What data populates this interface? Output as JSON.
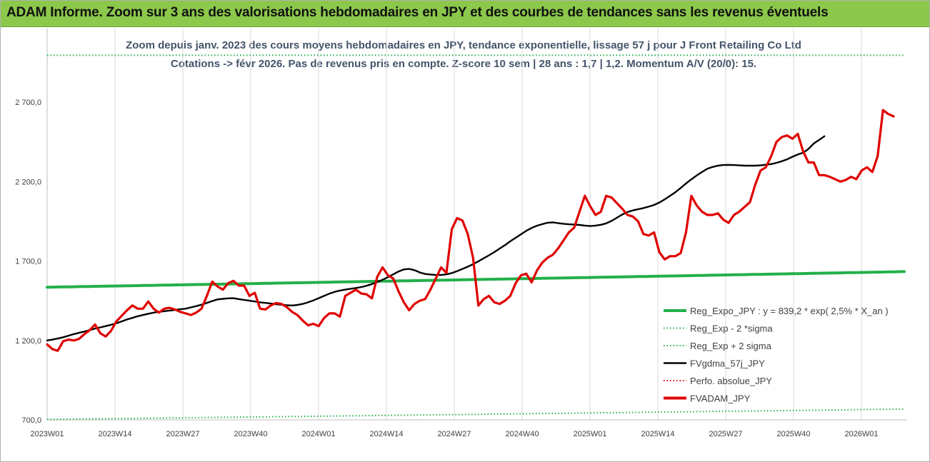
{
  "header": {
    "title": "ADAM Informe. Zoom sur 3 ans des valorisations hebdomadaires en JPY et des courbes de tendances sans les revenus éventuels"
  },
  "chart_data": {
    "type": "line",
    "subtitle_line1": "Zoom depuis janv. 2023 des cours moyens hebdomadaires en JPY, tendance exponentielle, lissage 57 j pour J Front Retailing Co Ltd",
    "subtitle_line2": "Cotations -> févr 2026. Pas de revenus pris en compte. Z-score 10 sem | 28 ans : 1,7 | 1,2. Momentum A/V (20/0): 15.",
    "x_tick_labels": [
      "2023W01",
      "2023W14",
      "2023W27",
      "2023W40",
      "2024W01",
      "2024W14",
      "2024W27",
      "2024W40",
      "2025W01",
      "2025W14",
      "2025W27",
      "2025W40",
      "2026W01"
    ],
    "y_tick_labels": [
      "700,0",
      "1 200,0",
      "1 700,0",
      "2 200,0",
      "2 700,0"
    ],
    "ylim": [
      700,
      2700
    ],
    "grid": "vertical",
    "legend_position": "bottom-right",
    "series": [
      {
        "name": "Reg_Expo_JPY : y = 839,2 * exp( 2,5% *  X_an )",
        "color": "#22b04a",
        "style": "solid-thick",
        "start": 1535,
        "end": 1633
      },
      {
        "name": "Reg_Exp - 2 *sigma",
        "color": "#22b04a",
        "style": "dotted",
        "start": 703,
        "end": 768
      },
      {
        "name": "Reg_Exp + 2 sigma",
        "color": "#22b04a",
        "style": "dotted",
        "start": 2995,
        "end": 2995
      },
      {
        "name": "FVgdma_57j_JPY",
        "color": "#000000",
        "style": "solid",
        "values": [
          1200,
          1205,
          1212,
          1220,
          1230,
          1240,
          1248,
          1256,
          1265,
          1275,
          1282,
          1290,
          1298,
          1308,
          1320,
          1332,
          1342,
          1352,
          1360,
          1368,
          1375,
          1380,
          1384,
          1388,
          1392,
          1396,
          1400,
          1408,
          1416,
          1425,
          1436,
          1448,
          1458,
          1462,
          1465,
          1466,
          1460,
          1455,
          1450,
          1445,
          1440,
          1436,
          1432,
          1428,
          1425,
          1422,
          1420,
          1423,
          1430,
          1440,
          1452,
          1466,
          1480,
          1494,
          1506,
          1514,
          1520,
          1525,
          1530,
          1536,
          1544,
          1555,
          1568,
          1582,
          1598,
          1616,
          1634,
          1647,
          1650,
          1642,
          1628,
          1618,
          1615,
          1612,
          1612,
          1616,
          1624,
          1636,
          1650,
          1664,
          1680,
          1698,
          1717,
          1736,
          1756,
          1778,
          1800,
          1824,
          1846,
          1868,
          1890,
          1908,
          1922,
          1932,
          1941,
          1943,
          1938,
          1934,
          1931,
          1929,
          1927,
          1923,
          1920,
          1923,
          1928,
          1937,
          1952,
          1972,
          1992,
          2008,
          2018,
          2026,
          2033,
          2042,
          2053,
          2068,
          2088,
          2110,
          2133,
          2160,
          2188,
          2214,
          2238,
          2260,
          2280,
          2292,
          2300,
          2304,
          2305,
          2304,
          2302,
          2300,
          2300,
          2300,
          2302,
          2306,
          2310,
          2318,
          2328,
          2340,
          2356,
          2370,
          2382,
          2405,
          2440,
          2462,
          2485
        ]
      },
      {
        "name": "Perfo. absolue_JPY",
        "color": "#e00000",
        "style": "dotted"
      },
      {
        "name": "FVADAM_JPY",
        "color": "#e00000",
        "style": "solid-thick",
        "values": [
          1175,
          1145,
          1135,
          1195,
          1205,
          1200,
          1210,
          1240,
          1265,
          1300,
          1245,
          1225,
          1260,
          1320,
          1355,
          1390,
          1420,
          1400,
          1400,
          1445,
          1400,
          1375,
          1400,
          1405,
          1395,
          1380,
          1370,
          1360,
          1375,
          1400,
          1480,
          1570,
          1540,
          1520,
          1560,
          1575,
          1545,
          1545,
          1480,
          1500,
          1400,
          1395,
          1420,
          1435,
          1430,
          1410,
          1380,
          1360,
          1325,
          1295,
          1305,
          1290,
          1340,
          1370,
          1370,
          1350,
          1480,
          1500,
          1520,
          1495,
          1490,
          1465,
          1600,
          1660,
          1610,
          1590,
          1510,
          1440,
          1390,
          1430,
          1450,
          1460,
          1520,
          1590,
          1660,
          1625,
          1900,
          1970,
          1955,
          1870,
          1720,
          1420,
          1460,
          1480,
          1440,
          1430,
          1450,
          1480,
          1560,
          1610,
          1620,
          1565,
          1640,
          1690,
          1720,
          1740,
          1780,
          1830,
          1880,
          1910,
          2010,
          2110,
          2045,
          1990,
          2010,
          2110,
          2100,
          2065,
          2030,
          1990,
          1980,
          1950,
          1870,
          1860,
          1880,
          1755,
          1710,
          1730,
          1730,
          1750,
          1880,
          2110,
          2050,
          2010,
          1990,
          1990,
          2000,
          1960,
          1940,
          1990,
          2010,
          2040,
          2070,
          2180,
          2270,
          2290,
          2360,
          2450,
          2480,
          2490,
          2470,
          2500,
          2390,
          2320,
          2320,
          2240,
          2240,
          2230,
          2215,
          2200,
          2210,
          2230,
          2215,
          2270,
          2290,
          2260,
          2360,
          2650,
          2625,
          2610
        ]
      }
    ]
  }
}
